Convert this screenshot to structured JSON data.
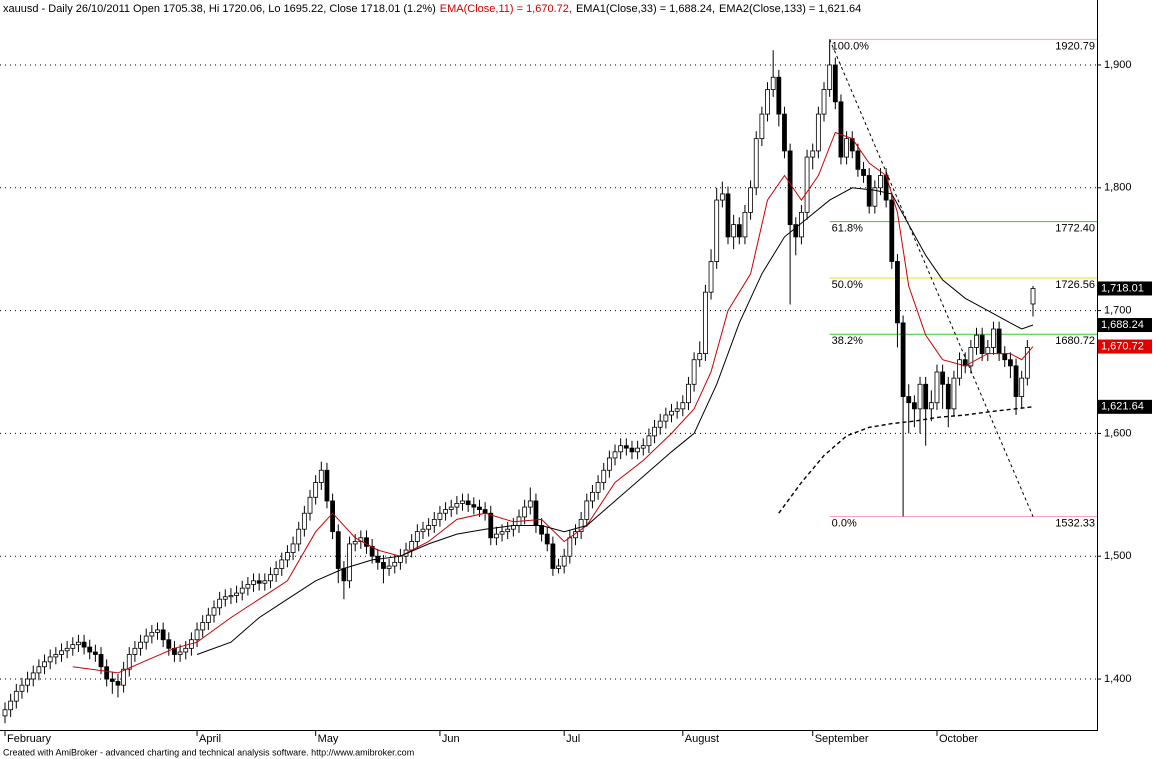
{
  "chart_data": {
    "type": "candlestick",
    "title": "xauusd - Daily 26/10/2011 Open 1705.38, Hi 1720.06, Lo 1695.22, Close 1718.01 (1.2%)",
    "footer": "Created with AmiBroker - advanced charting and technical analysis software. http://www.amibroker.com",
    "categories": [
      "February",
      null,
      null,
      null,
      null,
      null,
      null,
      null,
      null,
      null,
      null,
      null,
      null,
      null,
      null,
      null,
      null,
      null,
      null,
      null,
      null,
      null,
      null,
      null,
      null,
      null,
      null,
      null,
      null,
      null,
      null,
      null,
      null,
      null,
      "April",
      null,
      null,
      null,
      null,
      null,
      null,
      null,
      null,
      null,
      null,
      null,
      null,
      null,
      null,
      null,
      null,
      null,
      null,
      null,
      null,
      "May",
      null,
      null,
      null,
      null,
      null,
      null,
      null,
      null,
      null,
      null,
      null,
      null,
      null,
      null,
      null,
      null,
      null,
      null,
      null,
      null,
      null,
      "Jun",
      null,
      null,
      null,
      null,
      null,
      null,
      null,
      null,
      null,
      null,
      null,
      null,
      null,
      null,
      null,
      null,
      null,
      null,
      null,
      null,
      null,
      "Jul",
      null,
      null,
      null,
      null,
      null,
      null,
      null,
      null,
      null,
      null,
      null,
      null,
      null,
      null,
      null,
      null,
      null,
      null,
      null,
      null,
      "August",
      null,
      null,
      null,
      null,
      null,
      null,
      null,
      null,
      null,
      null,
      null,
      null,
      null,
      null,
      null,
      null,
      null,
      null,
      null,
      null,
      null,
      null,
      "September",
      null,
      null,
      null,
      null,
      null,
      null,
      null,
      null,
      null,
      null,
      null,
      null,
      null,
      null,
      null,
      null,
      null,
      null,
      null,
      null,
      null,
      "October",
      null,
      null,
      null,
      null,
      null,
      null,
      null,
      null,
      null,
      null,
      null,
      null,
      null,
      null,
      null,
      null,
      null
    ],
    "open": [
      1370,
      1375,
      1382,
      1390,
      1395,
      1400,
      1405,
      1410,
      1414,
      1418,
      1420,
      1423,
      1425,
      1428,
      1430,
      1426,
      1422,
      1420,
      1410,
      1400,
      1398,
      1395,
      1408,
      1420,
      1425,
      1430,
      1435,
      1438,
      1440,
      1432,
      1425,
      1420,
      1422,
      1425,
      1432,
      1440,
      1446,
      1452,
      1458,
      1465,
      1467,
      1468,
      1470,
      1474,
      1477,
      1480,
      1478,
      1480,
      1485,
      1490,
      1497,
      1503,
      1510,
      1522,
      1535,
      1548,
      1560,
      1570,
      1545,
      1520,
      1490,
      1480,
      1510,
      1512,
      1515,
      1508,
      1500,
      1495,
      1490,
      1492,
      1495,
      1500,
      1505,
      1512,
      1520,
      1522,
      1525,
      1530,
      1535,
      1538,
      1540,
      1543,
      1545,
      1542,
      1540,
      1538,
      1535,
      1515,
      1518,
      1520,
      1522,
      1525,
      1532,
      1540,
      1545,
      1525,
      1518,
      1510,
      1490,
      1492,
      1500,
      1515,
      1520,
      1530,
      1545,
      1552,
      1560,
      1570,
      1580,
      1585,
      1590,
      1588,
      1585,
      1588,
      1590,
      1598,
      1605,
      1610,
      1615,
      1618,
      1620,
      1625,
      1640,
      1660,
      1665,
      1715,
      1740,
      1790,
      1795,
      1760,
      1770,
      1760,
      1780,
      1800,
      1840,
      1860,
      1880,
      1890,
      1860,
      1830,
      1770,
      1760,
      1780,
      1825,
      1830,
      1860,
      1880,
      1900,
      1870,
      1825,
      1840,
      1830,
      1815,
      1810,
      1785,
      1800,
      1810,
      1790,
      1740,
      1690,
      1630,
      1625,
      1620,
      1640,
      1620,
      1625,
      1650,
      1640,
      1620,
      1645,
      1660,
      1655,
      1670,
      1680,
      1665,
      1670,
      1685,
      1665,
      1660,
      1655,
      1630,
      1645,
      1705.38
    ],
    "high": [
      1381,
      1388,
      1396,
      1401,
      1406,
      1411,
      1416,
      1420,
      1424,
      1426,
      1429,
      1431,
      1434,
      1436,
      1436,
      1432,
      1428,
      1426,
      1416,
      1406,
      1404,
      1414,
      1426,
      1431,
      1436,
      1441,
      1444,
      1446,
      1446,
      1438,
      1431,
      1428,
      1431,
      1438,
      1446,
      1452,
      1458,
      1464,
      1471,
      1473,
      1474,
      1476,
      1480,
      1483,
      1486,
      1486,
      1486,
      1491,
      1496,
      1503,
      1509,
      1516,
      1528,
      1541,
      1554,
      1566,
      1577,
      1576,
      1551,
      1526,
      1496,
      1516,
      1518,
      1521,
      1521,
      1514,
      1506,
      1501,
      1498,
      1501,
      1506,
      1511,
      1518,
      1526,
      1528,
      1531,
      1536,
      1541,
      1544,
      1546,
      1549,
      1551,
      1551,
      1548,
      1546,
      1544,
      1541,
      1524,
      1526,
      1528,
      1531,
      1538,
      1546,
      1556,
      1551,
      1531,
      1524,
      1516,
      1498,
      1506,
      1521,
      1526,
      1536,
      1551,
      1558,
      1566,
      1576,
      1586,
      1591,
      1596,
      1596,
      1594,
      1594,
      1596,
      1604,
      1611,
      1616,
      1621,
      1624,
      1626,
      1631,
      1646,
      1666,
      1675,
      1721,
      1750,
      1800,
      1805,
      1801,
      1778,
      1776,
      1786,
      1806,
      1846,
      1866,
      1886,
      1912,
      1896,
      1866,
      1836,
      1776,
      1786,
      1831,
      1836,
      1866,
      1886,
      1920.79,
      1906,
      1876,
      1846,
      1846,
      1836,
      1821,
      1816,
      1806,
      1816,
      1816,
      1796,
      1746,
      1696,
      1640,
      1631,
      1646,
      1646,
      1635,
      1656,
      1656,
      1646,
      1651,
      1666,
      1666,
      1676,
      1686,
      1686,
      1676,
      1691,
      1691,
      1671,
      1666,
      1661,
      1651,
      1676,
      1720.06
    ],
    "low": [
      1364,
      1369,
      1376,
      1384,
      1389,
      1394,
      1399,
      1404,
      1408,
      1412,
      1414,
      1417,
      1419,
      1422,
      1420,
      1416,
      1414,
      1404,
      1394,
      1388,
      1385,
      1389,
      1402,
      1414,
      1419,
      1424,
      1429,
      1432,
      1426,
      1419,
      1414,
      1414,
      1416,
      1419,
      1426,
      1434,
      1440,
      1446,
      1452,
      1459,
      1461,
      1462,
      1464,
      1468,
      1471,
      1472,
      1472,
      1474,
      1479,
      1484,
      1491,
      1497,
      1504,
      1516,
      1529,
      1542,
      1554,
      1539,
      1514,
      1478,
      1465,
      1474,
      1504,
      1506,
      1502,
      1494,
      1489,
      1478,
      1484,
      1486,
      1489,
      1494,
      1499,
      1506,
      1514,
      1516,
      1519,
      1524,
      1529,
      1532,
      1534,
      1537,
      1536,
      1534,
      1532,
      1529,
      1509,
      1509,
      1512,
      1514,
      1516,
      1519,
      1526,
      1534,
      1519,
      1512,
      1504,
      1484,
      1486,
      1486,
      1494,
      1509,
      1514,
      1524,
      1539,
      1546,
      1554,
      1564,
      1574,
      1579,
      1582,
      1579,
      1579,
      1582,
      1584,
      1592,
      1599,
      1604,
      1609,
      1612,
      1614,
      1619,
      1634,
      1654,
      1659,
      1709,
      1734,
      1784,
      1754,
      1750,
      1754,
      1754,
      1774,
      1794,
      1834,
      1854,
      1874,
      1850,
      1824,
      1705,
      1745,
      1754,
      1774,
      1815,
      1824,
      1854,
      1874,
      1864,
      1819,
      1819,
      1824,
      1809,
      1804,
      1779,
      1779,
      1794,
      1784,
      1734,
      1670,
      1532.33,
      1600,
      1605,
      1600,
      1590,
      1610,
      1619,
      1620,
      1605,
      1614,
      1639,
      1649,
      1649,
      1664,
      1659,
      1659,
      1664,
      1659,
      1654,
      1645,
      1615,
      1620,
      1639,
      1695.22
    ],
    "close": [
      1375,
      1382,
      1390,
      1395,
      1400,
      1405,
      1410,
      1414,
      1418,
      1420,
      1423,
      1425,
      1428,
      1430,
      1426,
      1422,
      1420,
      1410,
      1400,
      1398,
      1395,
      1408,
      1420,
      1425,
      1430,
      1435,
      1438,
      1440,
      1432,
      1425,
      1420,
      1422,
      1425,
      1432,
      1440,
      1446,
      1452,
      1458,
      1465,
      1467,
      1468,
      1470,
      1474,
      1477,
      1480,
      1478,
      1480,
      1485,
      1490,
      1497,
      1503,
      1510,
      1522,
      1535,
      1548,
      1560,
      1570,
      1545,
      1520,
      1490,
      1480,
      1510,
      1512,
      1515,
      1508,
      1500,
      1495,
      1490,
      1492,
      1495,
      1500,
      1505,
      1512,
      1520,
      1522,
      1525,
      1530,
      1535,
      1538,
      1540,
      1543,
      1545,
      1542,
      1540,
      1538,
      1535,
      1515,
      1518,
      1520,
      1522,
      1525,
      1532,
      1540,
      1545,
      1525,
      1518,
      1510,
      1490,
      1492,
      1500,
      1515,
      1520,
      1530,
      1545,
      1552,
      1560,
      1570,
      1580,
      1585,
      1590,
      1588,
      1585,
      1588,
      1590,
      1598,
      1605,
      1610,
      1615,
      1618,
      1620,
      1625,
      1640,
      1660,
      1665,
      1715,
      1740,
      1790,
      1795,
      1760,
      1770,
      1760,
      1780,
      1800,
      1840,
      1860,
      1880,
      1890,
      1860,
      1830,
      1770,
      1760,
      1780,
      1825,
      1830,
      1860,
      1880,
      1900,
      1870,
      1825,
      1840,
      1830,
      1815,
      1810,
      1785,
      1800,
      1810,
      1790,
      1740,
      1690,
      1630,
      1625,
      1620,
      1640,
      1620,
      1625,
      1650,
      1640,
      1620,
      1645,
      1660,
      1655,
      1670,
      1680,
      1665,
      1670,
      1685,
      1665,
      1660,
      1655,
      1630,
      1645,
      1670,
      1718.01
    ],
    "up_color": "#ffffff",
    "down_color": "#000000",
    "ylim": [
      1358.5,
      1952.9
    ],
    "yticks": [
      {
        "value": 1400,
        "label": "1,400"
      },
      {
        "value": 1500,
        "label": "1,500"
      },
      {
        "value": 1600,
        "label": "1,600"
      },
      {
        "value": 1700,
        "label": "1,700"
      },
      {
        "value": 1800,
        "label": "1,800"
      },
      {
        "value": 1900,
        "label": "1,900"
      }
    ],
    "grid": true,
    "lines": [
      {
        "name": "EMA(Close,11) = 1,670.72,",
        "color": "#cc0000",
        "dashed": false,
        "x": [
          12,
          20,
          25,
          30,
          34,
          40,
          45,
          50,
          55,
          58,
          62,
          66,
          70,
          75,
          80,
          85,
          90,
          95,
          99,
          103,
          108,
          113,
          118,
          122,
          125,
          128,
          132,
          135,
          138,
          141,
          144,
          147,
          150,
          153,
          156,
          158,
          160,
          163,
          166,
          170,
          174,
          178,
          180,
          182
        ],
        "values": [
          1410,
          1405,
          1415,
          1425,
          1430,
          1450,
          1465,
          1480,
          1520,
          1535,
          1515,
          1505,
          1500,
          1512,
          1530,
          1535,
          1528,
          1530,
          1512,
          1525,
          1560,
          1578,
          1600,
          1620,
          1650,
          1700,
          1730,
          1790,
          1810,
          1790,
          1810,
          1845,
          1840,
          1820,
          1810,
          1780,
          1720,
          1680,
          1660,
          1655,
          1665,
          1665,
          1660,
          1670.72
        ]
      },
      {
        "name": "EMA1(Close,33) = 1,688.24,",
        "color": "#000000",
        "dashed": false,
        "x": [
          34,
          40,
          45,
          50,
          55,
          60,
          65,
          70,
          75,
          80,
          85,
          90,
          95,
          99,
          103,
          108,
          113,
          118,
          122,
          126,
          130,
          134,
          138,
          142,
          146,
          150,
          154,
          157,
          160,
          163,
          166,
          170,
          174,
          178,
          180,
          182
        ],
        "values": [
          1420,
          1430,
          1450,
          1465,
          1480,
          1490,
          1497,
          1500,
          1510,
          1518,
          1522,
          1525,
          1525,
          1520,
          1525,
          1545,
          1565,
          1585,
          1600,
          1640,
          1690,
          1730,
          1760,
          1775,
          1790,
          1800,
          1798,
          1795,
          1770,
          1745,
          1725,
          1710,
          1700,
          1690,
          1685,
          1688.24
        ]
      },
      {
        "name": "EMA2(Close,133) = 1,621.64",
        "color": "#000000",
        "dashed": true,
        "x": [
          137,
          141,
          145,
          149,
          153,
          157,
          161,
          165,
          170,
          175,
          182
        ],
        "values": [
          1535,
          1560,
          1582,
          1598,
          1605,
          1608,
          1610,
          1613,
          1615,
          1618,
          1621.64
        ]
      }
    ],
    "fib_start": 146,
    "fib_levels": [
      {
        "label": "100.0%",
        "value": 1920.79,
        "color": "#f4a6b8"
      },
      {
        "label": "61.8%",
        "value": 1772.4,
        "value_label": "1772.40",
        "color": "#33cc33"
      },
      {
        "label": "50.0%",
        "value": 1726.56,
        "color": "#e6e600"
      },
      {
        "label": "38.2%",
        "value": 1680.72,
        "color": "#33cc33"
      },
      {
        "label": "0.0%",
        "value": 1532.33,
        "color": "#f4a6b8"
      }
    ],
    "trendline": {
      "x": [
        146,
        182
      ],
      "values": [
        1920.79,
        1532.33
      ]
    },
    "price_tags": [
      {
        "value": 1718.01,
        "label": "1,718.01",
        "color": "#000000"
      },
      {
        "value": 1688.24,
        "label": "1,688.24",
        "color": "#000000"
      },
      {
        "value": 1670.72,
        "label": "1,670.72",
        "color": "#e00000"
      },
      {
        "value": 1621.64,
        "label": "1,621.64",
        "color": "#000000"
      }
    ]
  }
}
